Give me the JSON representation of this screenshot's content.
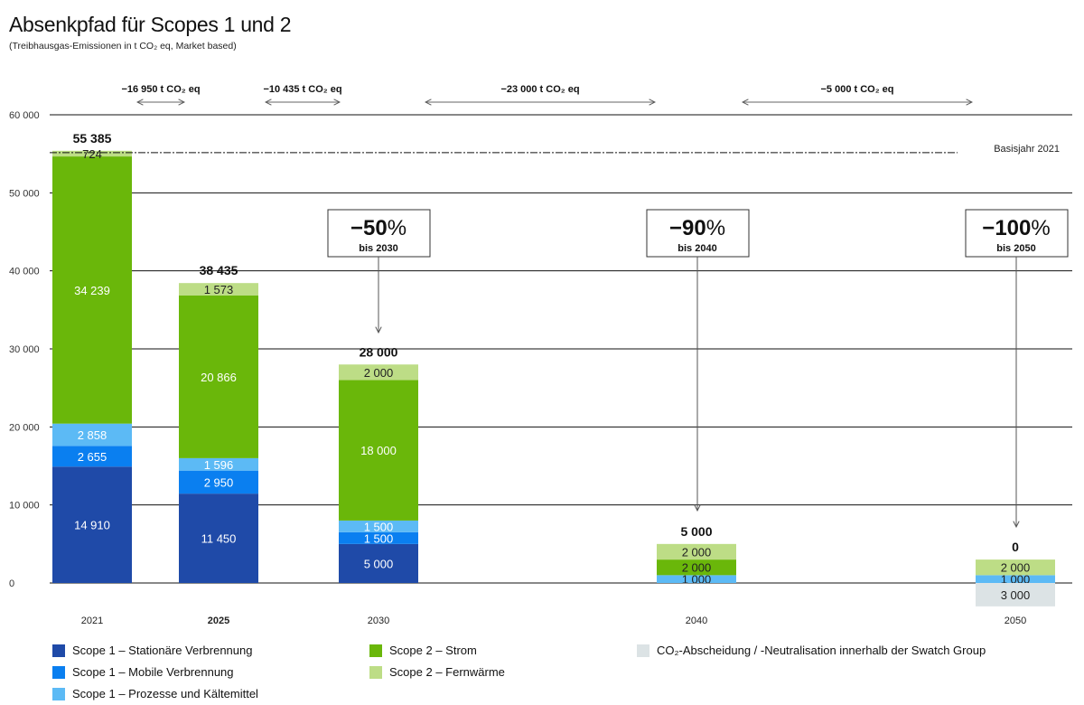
{
  "chart_data": {
    "type": "bar",
    "stacked": true,
    "title": "Absenkpfad für Scopes 1 und 2",
    "subtitle": "(Treibhausgas-Emissionen in t CO₂ eq, Market based)",
    "categories": [
      "2021",
      "2025",
      "2030",
      "2040",
      "2050"
    ],
    "bold_category": "2025",
    "ylim": [
      0,
      60000
    ],
    "yticks": [
      0,
      10000,
      20000,
      30000,
      40000,
      50000,
      60000
    ],
    "ytick_labels": [
      "0",
      "10 000",
      "20 000",
      "30 000",
      "40 000",
      "50 000",
      "60 000"
    ],
    "grid": true,
    "legend_placement": "bottom",
    "series": [
      {
        "name": "Scope 1 – Stationäre Verbrennung",
        "color": "#1f4aa8",
        "values": [
          14910,
          11450,
          5000,
          0,
          0
        ],
        "labels": [
          "14 910",
          "11 450",
          "5 000",
          "",
          ""
        ]
      },
      {
        "name": "Scope 1 – Mobile Verbrennung",
        "color": "#0a7ff0",
        "values": [
          2655,
          2950,
          1500,
          0,
          0
        ],
        "labels": [
          "2 655",
          "2 950",
          "1 500",
          "",
          ""
        ]
      },
      {
        "name": "Scope 1 – Prozesse und Kältemittel",
        "color": "#5cbaf5",
        "values": [
          2858,
          1596,
          1500,
          1000,
          1000
        ],
        "labels": [
          "2 858",
          "1 596",
          "1 500",
          "1 000",
          "1 000"
        ]
      },
      {
        "name": "Scope 2 – Strom",
        "color": "#6ab70a",
        "values": [
          34239,
          20866,
          18000,
          2000,
          0
        ],
        "labels": [
          "34 239",
          "20 866",
          "18 000",
          "2 000",
          ""
        ]
      },
      {
        "name": "Scope 2 – Fernwärme",
        "color": "#bddd86",
        "values": [
          724,
          1573,
          2000,
          2000,
          2000
        ],
        "labels": [
          "724",
          "1 573",
          "2 000",
          "2 000",
          "2 000"
        ]
      },
      {
        "name": "CO₂-Abscheidung / -Neutralisation innerhalb der Swatch Group",
        "color": "#dce3e5",
        "values": [
          0,
          0,
          0,
          0,
          -3000
        ],
        "labels": [
          "",
          "",
          "",
          "",
          "3 000"
        ]
      }
    ],
    "totals": [
      "55 385",
      "38 435",
      "28 000",
      "5 000",
      "0"
    ],
    "baseline": {
      "value": 55385,
      "label": "Basisjahr 2021"
    },
    "reductions": [
      {
        "label": "−16 950 t CO₂ eq",
        "from": "2021",
        "to": "2025"
      },
      {
        "label": "−10 435 t CO₂ eq",
        "from": "2025",
        "to": "2030"
      },
      {
        "label": "−23 000 t CO₂ eq",
        "from": "2030",
        "to": "2040"
      },
      {
        "label": "−5 000 t CO₂ eq",
        "from": "2040",
        "to": "2050"
      }
    ],
    "targets": [
      {
        "pct": "−50",
        "unit": "%",
        "label": "bis 2030",
        "category": "2030"
      },
      {
        "pct": "−90",
        "unit": "%",
        "label": "bis 2040",
        "category": "2040"
      },
      {
        "pct": "−100",
        "unit": "%",
        "label": "bis 2050",
        "category": "2050"
      }
    ]
  }
}
